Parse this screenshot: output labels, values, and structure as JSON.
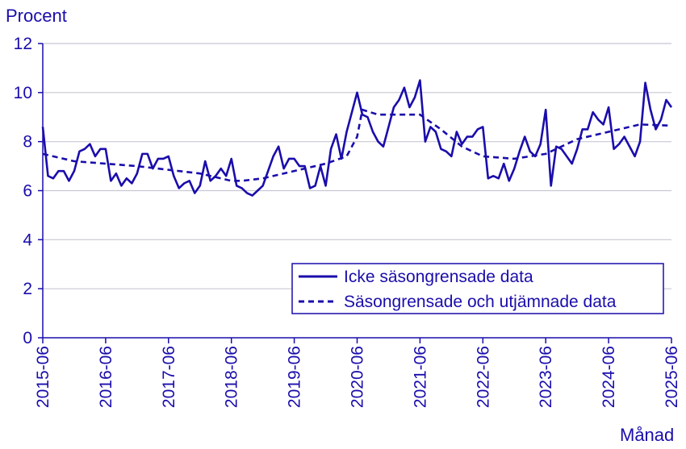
{
  "chart_data": {
    "type": "line",
    "ylabel": "Procent",
    "xlabel": "Månad",
    "ylim": [
      0,
      12
    ],
    "yticks": [
      0,
      2,
      4,
      6,
      8,
      10,
      12
    ],
    "xtick_labels": [
      "2015-06",
      "2016-06",
      "2017-06",
      "2018-06",
      "2019-06",
      "2020-06",
      "2021-06",
      "2022-06",
      "2023-06",
      "2024-06",
      "2025-06"
    ],
    "xlim_months": [
      0,
      120
    ],
    "grid": "horizontal",
    "legend_position": "bottom-right",
    "colors": {
      "line": "#1a0dab",
      "grid": "#c8c8d6",
      "axis": "#1a0dab"
    },
    "series": [
      {
        "name": "Icke säsongrensade data",
        "style": "solid",
        "points": [
          [
            0,
            8.6
          ],
          [
            1,
            6.6
          ],
          [
            2,
            6.5
          ],
          [
            3,
            6.8
          ],
          [
            4,
            6.8
          ],
          [
            5,
            6.4
          ],
          [
            6,
            6.8
          ],
          [
            7,
            7.6
          ],
          [
            8,
            7.7
          ],
          [
            9,
            7.9
          ],
          [
            10,
            7.4
          ],
          [
            11,
            7.7
          ],
          [
            12,
            7.7
          ],
          [
            13,
            6.4
          ],
          [
            14,
            6.7
          ],
          [
            15,
            6.2
          ],
          [
            16,
            6.5
          ],
          [
            17,
            6.3
          ],
          [
            18,
            6.7
          ],
          [
            19,
            7.5
          ],
          [
            20,
            7.5
          ],
          [
            21,
            6.9
          ],
          [
            22,
            7.3
          ],
          [
            23,
            7.3
          ],
          [
            24,
            7.4
          ],
          [
            25,
            6.6
          ],
          [
            26,
            6.1
          ],
          [
            27,
            6.3
          ],
          [
            28,
            6.4
          ],
          [
            29,
            5.9
          ],
          [
            30,
            6.2
          ],
          [
            31,
            7.2
          ],
          [
            32,
            6.4
          ],
          [
            33,
            6.6
          ],
          [
            34,
            6.9
          ],
          [
            35,
            6.6
          ],
          [
            36,
            7.3
          ],
          [
            37,
            6.2
          ],
          [
            38,
            6.1
          ],
          [
            39,
            5.9
          ],
          [
            40,
            5.8
          ],
          [
            41,
            6.0
          ],
          [
            42,
            6.2
          ],
          [
            43,
            6.8
          ],
          [
            44,
            7.4
          ],
          [
            45,
            7.8
          ],
          [
            46,
            6.9
          ],
          [
            47,
            7.3
          ],
          [
            48,
            7.3
          ],
          [
            49,
            7.0
          ],
          [
            50,
            7.0
          ],
          [
            51,
            6.1
          ],
          [
            52,
            6.2
          ],
          [
            53,
            7.0
          ],
          [
            54,
            6.2
          ],
          [
            55,
            7.7
          ],
          [
            56,
            8.3
          ],
          [
            57,
            7.3
          ],
          [
            58,
            8.4
          ],
          [
            59,
            9.2
          ],
          [
            60,
            10.0
          ],
          [
            61,
            9.1
          ],
          [
            62,
            9.0
          ],
          [
            63,
            8.4
          ],
          [
            64,
            8.0
          ],
          [
            65,
            7.8
          ],
          [
            66,
            8.6
          ],
          [
            67,
            9.4
          ],
          [
            68,
            9.7
          ],
          [
            69,
            10.2
          ],
          [
            70,
            9.4
          ],
          [
            71,
            9.8
          ],
          [
            72,
            10.5
          ],
          [
            73,
            8.0
          ],
          [
            74,
            8.6
          ],
          [
            75,
            8.4
          ],
          [
            76,
            7.7
          ],
          [
            77,
            7.6
          ],
          [
            78,
            7.4
          ],
          [
            79,
            8.4
          ],
          [
            80,
            7.9
          ],
          [
            81,
            8.2
          ],
          [
            82,
            8.2
          ],
          [
            83,
            8.5
          ],
          [
            84,
            8.6
          ],
          [
            85,
            6.5
          ],
          [
            86,
            6.6
          ],
          [
            87,
            6.5
          ],
          [
            88,
            7.1
          ],
          [
            89,
            6.4
          ],
          [
            90,
            6.9
          ],
          [
            91,
            7.6
          ],
          [
            92,
            8.2
          ],
          [
            93,
            7.6
          ],
          [
            94,
            7.4
          ],
          [
            95,
            7.9
          ],
          [
            96,
            9.3
          ],
          [
            97,
            6.2
          ],
          [
            98,
            7.8
          ],
          [
            99,
            7.7
          ],
          [
            100,
            7.4
          ],
          [
            101,
            7.1
          ],
          [
            102,
            7.7
          ],
          [
            103,
            8.5
          ],
          [
            104,
            8.5
          ],
          [
            105,
            9.2
          ],
          [
            106,
            8.9
          ],
          [
            107,
            8.7
          ],
          [
            108,
            9.4
          ],
          [
            109,
            7.7
          ],
          [
            110,
            7.9
          ],
          [
            111,
            8.2
          ],
          [
            112,
            7.8
          ],
          [
            113,
            7.4
          ],
          [
            114,
            8.0
          ],
          [
            115,
            10.4
          ],
          [
            116,
            9.3
          ],
          [
            117,
            8.5
          ],
          [
            118,
            8.9
          ],
          [
            119,
            9.7
          ],
          [
            120,
            9.4
          ]
        ]
      },
      {
        "name": "Säsongrensade och utjämnade data",
        "style": "dashed",
        "points": [
          [
            0,
            7.5
          ],
          [
            6,
            7.2
          ],
          [
            12,
            7.1
          ],
          [
            18,
            7.0
          ],
          [
            24,
            6.85
          ],
          [
            30,
            6.7
          ],
          [
            36,
            6.4
          ],
          [
            38,
            6.4
          ],
          [
            42,
            6.5
          ],
          [
            48,
            6.8
          ],
          [
            54,
            7.1
          ],
          [
            58,
            7.4
          ],
          [
            60,
            8.2
          ],
          [
            61,
            9.3
          ],
          [
            64,
            9.1
          ],
          [
            68,
            9.1
          ],
          [
            72,
            9.1
          ],
          [
            76,
            8.5
          ],
          [
            80,
            7.8
          ],
          [
            84,
            7.4
          ],
          [
            90,
            7.3
          ],
          [
            96,
            7.5
          ],
          [
            102,
            8.1
          ],
          [
            108,
            8.4
          ],
          [
            114,
            8.7
          ],
          [
            120,
            8.65
          ]
        ]
      }
    ]
  }
}
